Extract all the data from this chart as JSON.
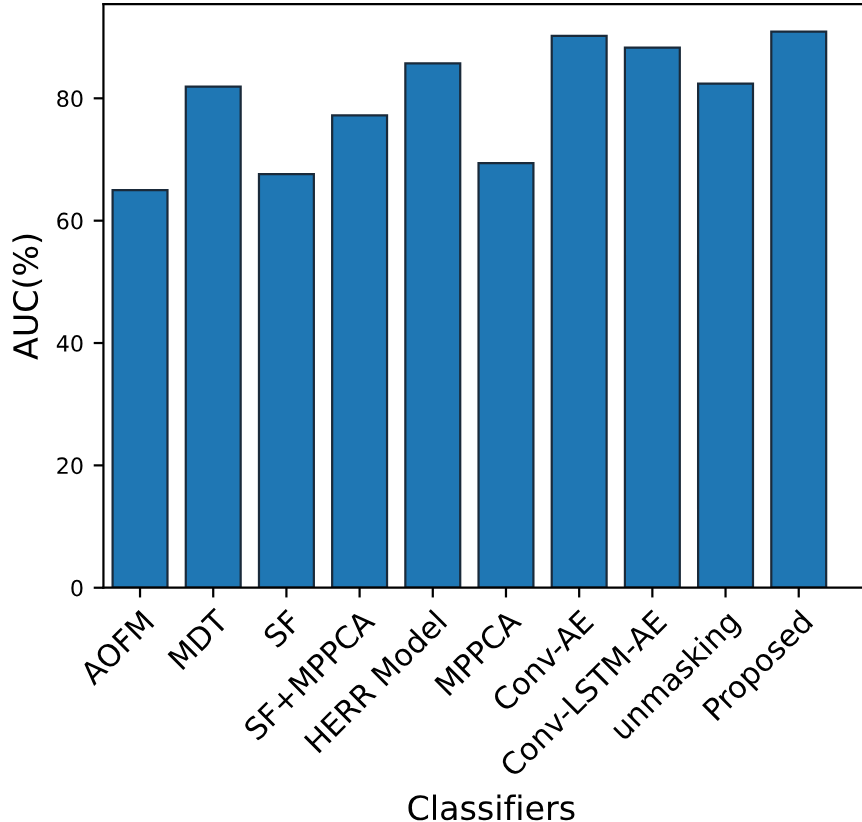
{
  "chart_data": {
    "type": "bar",
    "xlabel": "Classifiers",
    "ylabel": "AUC(%)",
    "categories": [
      "AOFM",
      "MDT",
      "SF",
      "SF+MPPCA",
      "HERR Model",
      "MPPCA",
      "Conv-AE",
      "Conv-LSTM-AE",
      "unmasking",
      "Proposed"
    ],
    "values": [
      65,
      81.9,
      67.6,
      77.2,
      85.7,
      69.4,
      90.2,
      88.3,
      82.4,
      90.9
    ],
    "color": "#1f77b4",
    "ylim": [
      0,
      95.4
    ],
    "yticks": [
      0,
      20,
      40,
      60,
      80
    ],
    "grid": false
  }
}
